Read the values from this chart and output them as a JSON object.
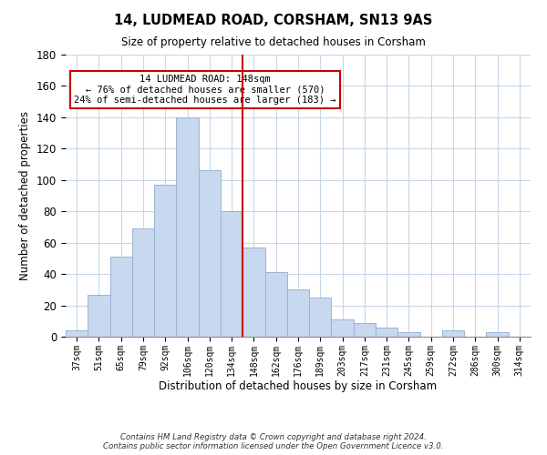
{
  "title": "14, LUDMEAD ROAD, CORSHAM, SN13 9AS",
  "subtitle": "Size of property relative to detached houses in Corsham",
  "xlabel": "Distribution of detached houses by size in Corsham",
  "ylabel": "Number of detached properties",
  "bar_color": "#c8d8ee",
  "bar_edge_color": "#9ab4d4",
  "categories": [
    "37sqm",
    "51sqm",
    "65sqm",
    "79sqm",
    "92sqm",
    "106sqm",
    "120sqm",
    "134sqm",
    "148sqm",
    "162sqm",
    "176sqm",
    "189sqm",
    "203sqm",
    "217sqm",
    "231sqm",
    "245sqm",
    "259sqm",
    "272sqm",
    "286sqm",
    "300sqm",
    "314sqm"
  ],
  "values": [
    4,
    27,
    51,
    69,
    97,
    140,
    106,
    80,
    57,
    41,
    30,
    25,
    11,
    9,
    6,
    3,
    0,
    4,
    0,
    3,
    0
  ],
  "vline_x": 7.5,
  "vline_color": "#cc0000",
  "annotation_text": "14 LUDMEAD ROAD: 148sqm\n← 76% of detached houses are smaller (570)\n24% of semi-detached houses are larger (183) →",
  "annotation_box_color": "#ffffff",
  "annotation_box_edgecolor": "#cc0000",
  "ylim": [
    0,
    180
  ],
  "yticks": [
    0,
    20,
    40,
    60,
    80,
    100,
    120,
    140,
    160,
    180
  ],
  "footer_line1": "Contains HM Land Registry data © Crown copyright and database right 2024.",
  "footer_line2": "Contains public sector information licensed under the Open Government Licence v3.0.",
  "background_color": "#ffffff",
  "grid_color": "#c8d8e8"
}
